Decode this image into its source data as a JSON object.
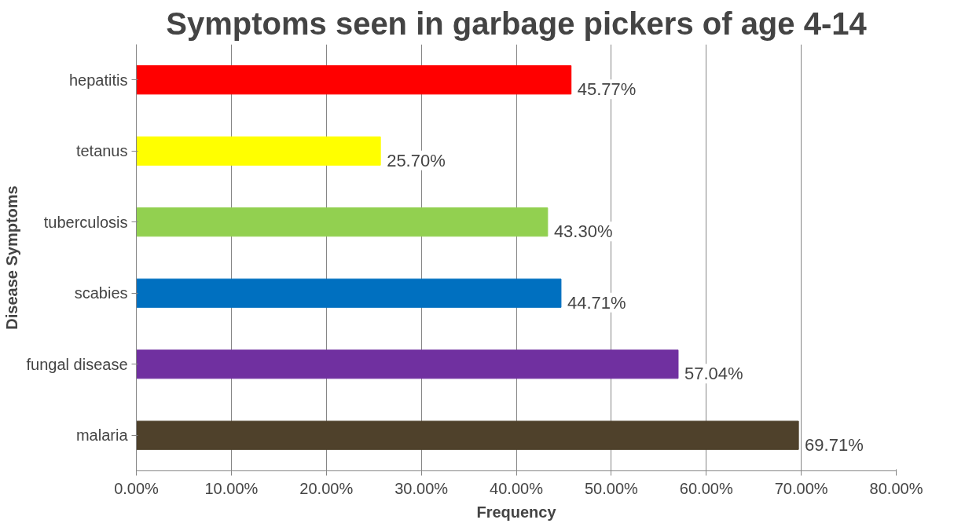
{
  "chart_data": {
    "type": "bar",
    "orientation": "horizontal",
    "title": "Symptoms seen in garbage pickers of age 4-14",
    "xlabel": "Frequency",
    "ylabel": "Disease Symptoms",
    "categories": [
      "hepatitis",
      "tetanus",
      "tuberculosis",
      "scabies",
      "fungal disease",
      "malaria"
    ],
    "values": [
      0.4577,
      0.257,
      0.433,
      0.4471,
      0.5704,
      0.6971
    ],
    "colors": [
      "#ff0000",
      "#ffff00",
      "#92d050",
      "#0070c0",
      "#7030a0",
      "#4f412b"
    ],
    "value_labels": [
      "45.77%",
      "25.70%",
      "43.30%",
      "44.71%",
      "57.04%",
      "69.71%"
    ],
    "xlim": [
      0,
      0.8
    ],
    "xticks": [
      {
        "value": 0,
        "label": "0.00%"
      },
      {
        "value": 0.1,
        "label": "10.00%"
      },
      {
        "value": 0.2,
        "label": "20.00%"
      },
      {
        "value": 0.3,
        "label": "30.00%"
      },
      {
        "value": 0.4,
        "label": "40.00%"
      },
      {
        "value": 0.5,
        "label": "50.00%"
      },
      {
        "value": 0.6,
        "label": "60.00%"
      },
      {
        "value": 0.7,
        "label": "70.00%"
      },
      {
        "value": 0.8,
        "label": "80.00%"
      }
    ],
    "grid": "x"
  }
}
